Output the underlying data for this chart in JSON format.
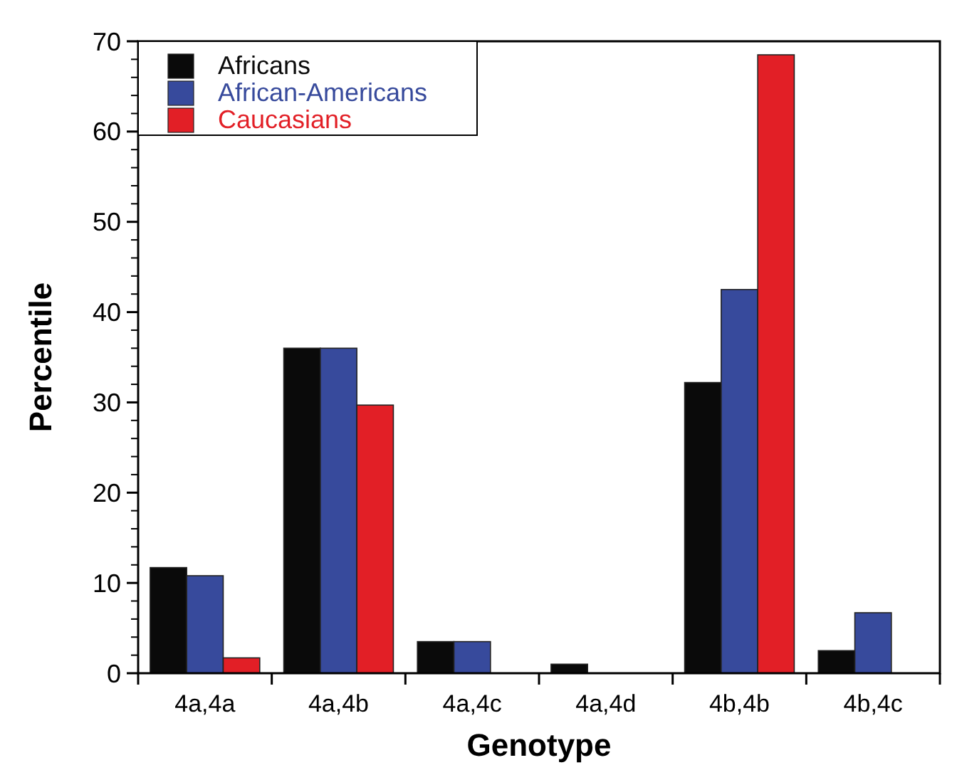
{
  "chart_data": {
    "type": "bar",
    "xlabel": "Genotype",
    "ylabel": "Percentile",
    "categories": [
      "4a,4a",
      "4a,4b",
      "4a,4c",
      "4a,4d",
      "4b,4b",
      "4b,4c"
    ],
    "series": [
      {
        "name": "Africans",
        "color": "#0a0a0a",
        "values": [
          11.7,
          36,
          3.5,
          1,
          32.2,
          2.5
        ]
      },
      {
        "name": "African-Americans",
        "color": "#374a9c",
        "values": [
          10.8,
          36,
          3.5,
          0,
          42.5,
          6.7
        ]
      },
      {
        "name": "Caucasians",
        "color": "#e21f26",
        "values": [
          1.7,
          29.7,
          0,
          0,
          68.5,
          0
        ]
      }
    ],
    "ylim": [
      0,
      70
    ],
    "yticks": [
      0,
      10,
      20,
      30,
      40,
      50,
      60,
      70
    ],
    "grid": false,
    "legend": "top left"
  }
}
